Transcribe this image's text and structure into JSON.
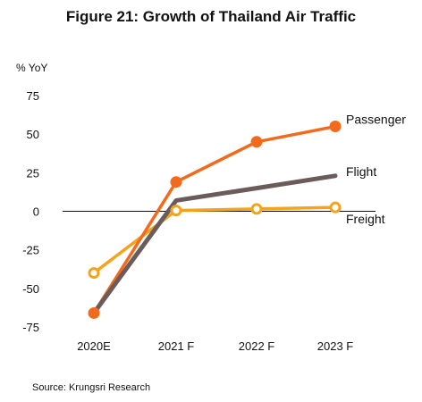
{
  "chart_data": {
    "type": "line",
    "title": "Figure 21:  Growth of Thailand Air Traffic",
    "y_unit_label": "% YoY",
    "categories": [
      "2020E",
      "2021 F",
      "2022 F",
      "2023 F"
    ],
    "ylim": [
      -75,
      75
    ],
    "yticks": [
      75,
      50,
      25,
      0,
      -25,
      -50,
      -75
    ],
    "grid": false,
    "series": [
      {
        "name": "Passenger",
        "values": [
          -66,
          19,
          45,
          55
        ],
        "color": "#f26b1d",
        "marker": "filled-circle"
      },
      {
        "name": "Flight",
        "values": [
          -66,
          7,
          15,
          23
        ],
        "color": "#6b5b5b",
        "marker": "none"
      },
      {
        "name": "Freight",
        "values": [
          -40,
          0.5,
          1.5,
          2.5
        ],
        "color": "#f5a31a",
        "marker": "hollow-circle"
      }
    ],
    "legend_placement": "right-of-line-ends",
    "source": "Source: Krungsri Research"
  }
}
